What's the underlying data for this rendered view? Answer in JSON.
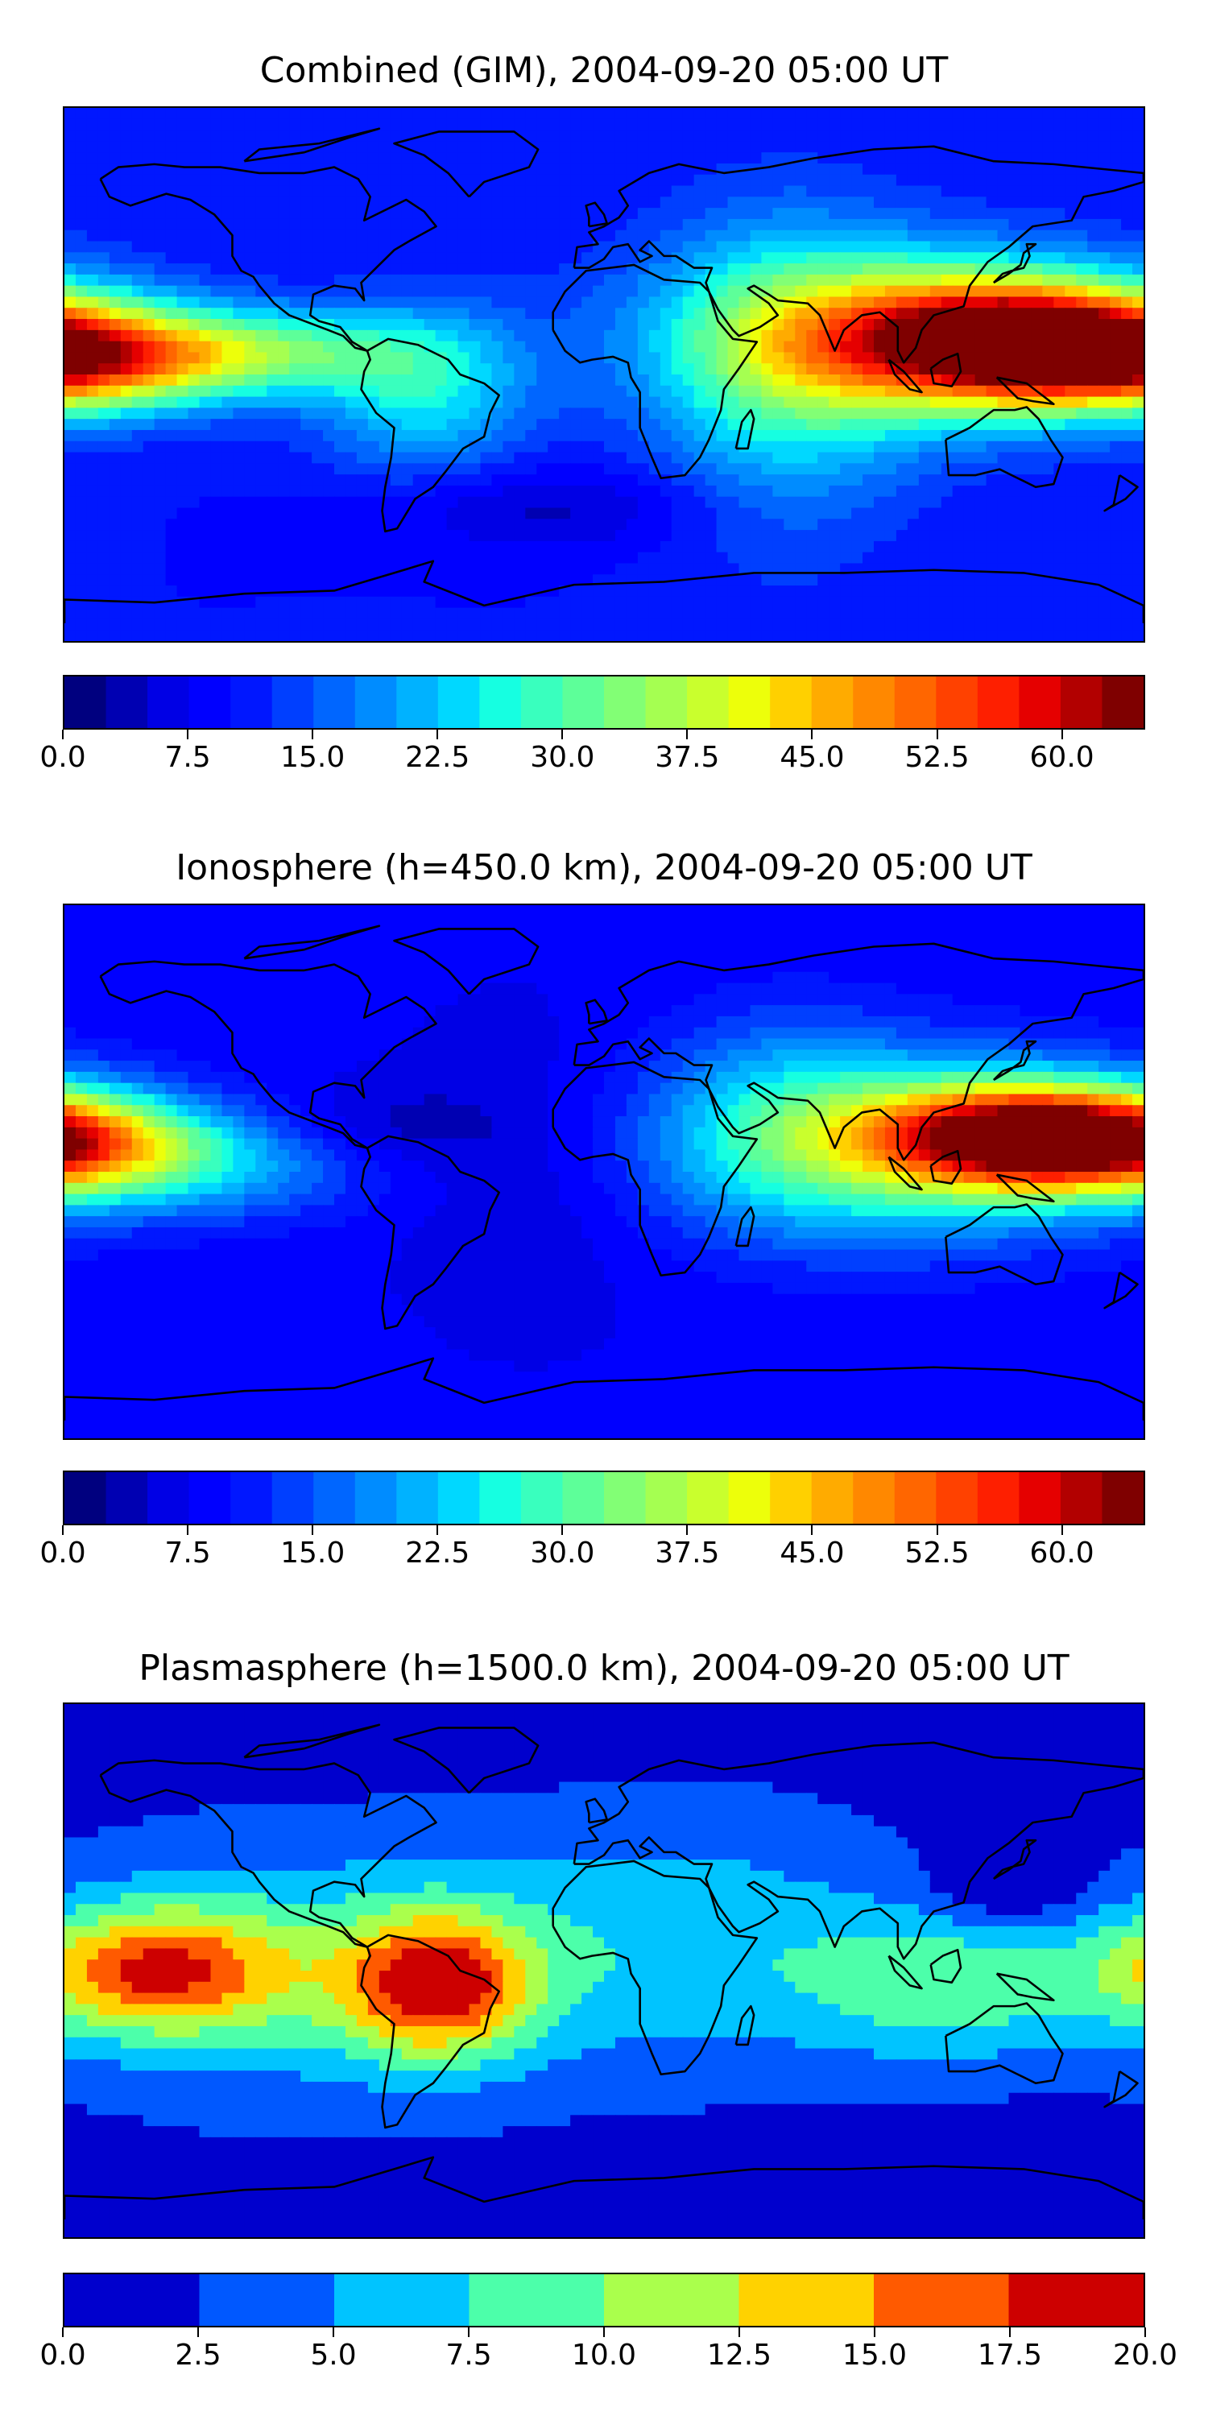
{
  "chart_data": [
    {
      "type": "heatmap",
      "title": "Combined (GIM), 2004-09-20 05:00 UT",
      "colorbar": {
        "min": 0.0,
        "max": 65.0,
        "step": 2.5,
        "tick_labels": [
          "0.0",
          "7.5",
          "15.0",
          "22.5",
          "30.0",
          "37.5",
          "45.0",
          "52.5",
          "60.0"
        ],
        "tick_values": [
          0.0,
          7.5,
          15.0,
          22.5,
          30.0,
          37.5,
          45.0,
          52.5,
          60.0
        ]
      },
      "field": {
        "background": 10,
        "blobs": [
          {
            "lon": 138,
            "lat": 12,
            "slon": 40,
            "slat": 14,
            "amp": 46
          },
          {
            "lon": 95,
            "lat": 12,
            "slon": 55,
            "slat": 22,
            "amp": 22
          },
          {
            "lon": -175,
            "lat": 5,
            "slon": 40,
            "slat": 12,
            "amp": 33
          },
          {
            "lon": -110,
            "lat": 8,
            "slon": 35,
            "slat": 10,
            "amp": 15
          },
          {
            "lon": -60,
            "lat": -5,
            "slon": 25,
            "slat": 20,
            "amp": 15
          },
          {
            "lon": 60,
            "lat": 0,
            "slon": 30,
            "slat": 40,
            "amp": 12
          },
          {
            "lon": -20,
            "lat": -45,
            "slon": 40,
            "slat": 10,
            "amp": -6
          }
        ]
      }
    },
    {
      "type": "heatmap",
      "title": "Ionosphere  (h=450.0 km), 2004-09-20 05:00 UT",
      "colorbar": {
        "min": 0.0,
        "max": 65.0,
        "step": 2.5,
        "tick_labels": [
          "0.0",
          "7.5",
          "15.0",
          "22.5",
          "30.0",
          "37.5",
          "45.0",
          "52.5",
          "60.0"
        ],
        "tick_values": [
          0.0,
          7.5,
          15.0,
          22.5,
          30.0,
          37.5,
          45.0,
          52.5,
          60.0
        ]
      },
      "field": {
        "background": 8,
        "blobs": [
          {
            "lon": 140,
            "lat": 12,
            "slon": 35,
            "slat": 12,
            "amp": 42
          },
          {
            "lon": 100,
            "lat": 8,
            "slon": 55,
            "slat": 22,
            "amp": 22
          },
          {
            "lon": -180,
            "lat": 10,
            "slon": 35,
            "slat": 12,
            "amp": 28
          },
          {
            "lon": -130,
            "lat": 0,
            "slon": 40,
            "slat": 12,
            "amp": 10
          },
          {
            "lon": -70,
            "lat": 15,
            "slon": 25,
            "slat": 10,
            "amp": -4
          },
          {
            "lon": -25,
            "lat": 0,
            "slon": 30,
            "slat": 35,
            "amp": -3
          },
          {
            "lon": 60,
            "lat": 20,
            "slon": 30,
            "slat": 25,
            "amp": 8
          }
        ]
      }
    },
    {
      "type": "heatmap",
      "title": "Plasmasphere (h=1500.0 km), 2004-09-20 05:00 UT",
      "colorbar": {
        "min": 0.0,
        "max": 20.0,
        "step": 2.5,
        "tick_labels": [
          "0.0",
          "2.5",
          "5.0",
          "7.5",
          "10.0",
          "12.5",
          "15.0",
          "17.5",
          "20.0"
        ],
        "tick_values": [
          0.0,
          2.5,
          5.0,
          7.5,
          10.0,
          12.5,
          15.0,
          17.5,
          20.0
        ]
      },
      "field": {
        "background": 1.5,
        "blobs": [
          {
            "lon": -150,
            "lat": 0,
            "slon": 30,
            "slat": 15,
            "amp": 13
          },
          {
            "lon": -55,
            "lat": -5,
            "slon": 22,
            "slat": 17,
            "amp": 14
          },
          {
            "lon": -100,
            "lat": 0,
            "slon": 60,
            "slat": 30,
            "amp": 6
          },
          {
            "lon": 30,
            "lat": 10,
            "slon": 50,
            "slat": 30,
            "amp": 5
          },
          {
            "lon": 115,
            "lat": -5,
            "slon": 35,
            "slat": 18,
            "amp": 7
          },
          {
            "lon": 135,
            "lat": 28,
            "slon": 18,
            "slat": 10,
            "amp": -4
          }
        ]
      }
    }
  ],
  "colormaps": {
    "jet_26": [
      "#00007f",
      "#0000b2",
      "#0000e5",
      "#0000ff",
      "#0017ff",
      "#003fff",
      "#0066ff",
      "#008cff",
      "#00b2ff",
      "#00d8ff",
      "#16ffe1",
      "#39ffbe",
      "#5dff99",
      "#82ff75",
      "#a5ff51",
      "#c9ff2d",
      "#edff0a",
      "#ffd000",
      "#ffab00",
      "#ff8800",
      "#ff6600",
      "#ff4100",
      "#fe1f00",
      "#e50000",
      "#b20000",
      "#7f0000"
    ],
    "jet_8": [
      "#0000cd",
      "#0058ff",
      "#00c4ff",
      "#4cffaa",
      "#aaff4c",
      "#ffd200",
      "#ff5a00",
      "#cd0000"
    ]
  },
  "coastline_color": "#000000"
}
